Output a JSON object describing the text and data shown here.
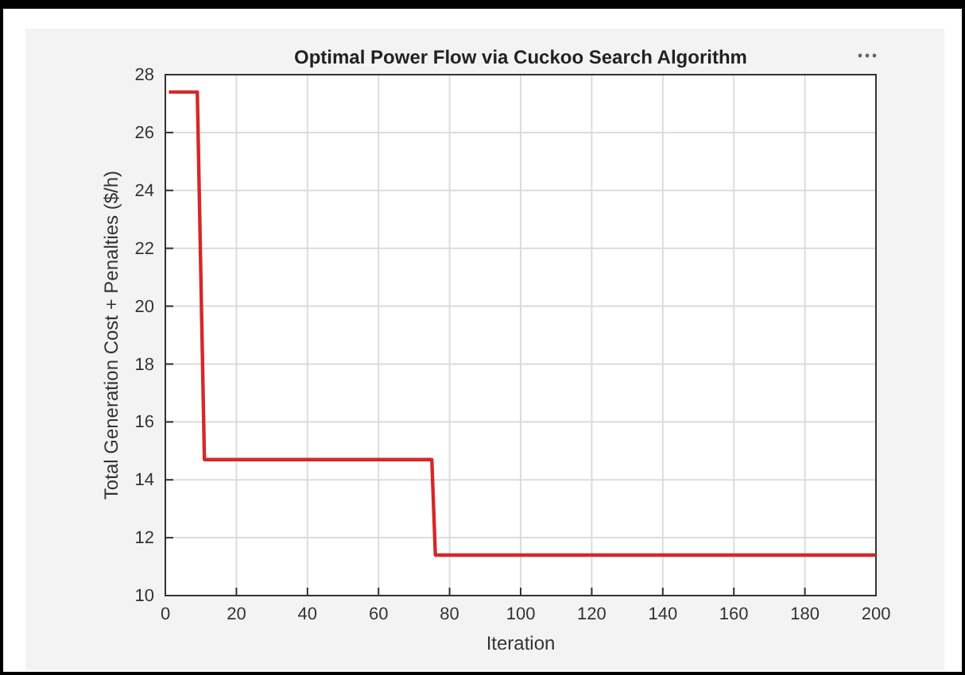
{
  "chart_data": {
    "type": "line",
    "title": "Optimal Power Flow via Cuckoo Search Algorithm",
    "xlabel": "Iteration",
    "ylabel": "Total Generation Cost + Penalties ($/h)",
    "x": [
      1,
      9,
      11,
      75,
      76,
      200
    ],
    "series": [
      {
        "color": "#d62728",
        "values": [
          27.4,
          27.4,
          14.7,
          14.7,
          11.4,
          11.4
        ]
      }
    ],
    "xlim": [
      0,
      200
    ],
    "xticks": [
      0,
      20,
      40,
      60,
      80,
      100,
      120,
      140,
      160,
      180,
      200
    ],
    "ylim": [
      10,
      28
    ],
    "yticks": [
      10,
      12,
      14,
      16,
      18,
      20,
      22,
      24,
      26,
      28
    ],
    "grid": true,
    "marker": "none",
    "line_style": "solid",
    "legend": false
  }
}
